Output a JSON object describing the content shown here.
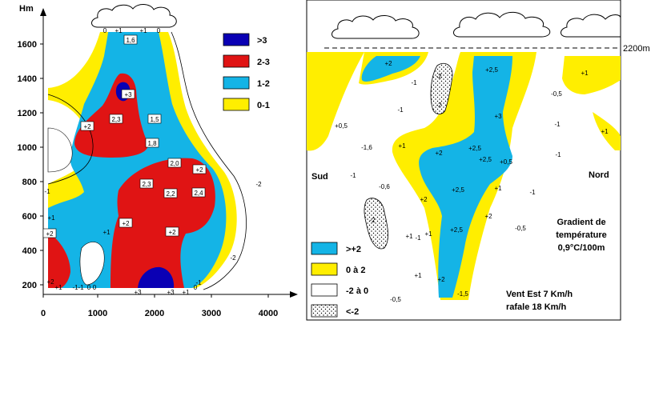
{
  "colors": {
    "cat_gt3": "#0a00b4",
    "cat_2_3": "#e01414",
    "cat_1_2": "#14b4e6",
    "cat_0_1": "#ffee00",
    "frame": "#000000"
  },
  "left_panel": {
    "y_axis_unit": "Hm",
    "y_ticks": [
      "1600",
      "1400",
      "1200",
      "1000",
      "800",
      "600",
      "400",
      "200"
    ],
    "x_ticks": [
      "0",
      "1000",
      "2000",
      "3000",
      "4000"
    ],
    "legend": [
      {
        "label": ">3",
        "color": "#0a00b4"
      },
      {
        "label": "2-3",
        "color": "#e01414"
      },
      {
        "label": "1-2",
        "color": "#14b4e6"
      },
      {
        "label": "0-1",
        "color": "#ffee00"
      }
    ],
    "boxed_values": [
      "1,6",
      "+3",
      "2,3",
      "+2",
      "1,5",
      "1,8",
      "2,0",
      "+2",
      "2,3",
      "2,2",
      "2,4",
      "+2",
      "+2",
      "+2"
    ],
    "contour_labels": [
      "0",
      "+1",
      "+1",
      "0",
      "-1",
      "+1",
      "+1",
      "-1",
      "-2",
      "-2",
      "+2",
      "+1",
      "0",
      "-1",
      "0",
      "+3",
      "+3",
      "+1",
      "0",
      "-1"
    ]
  },
  "right_panel": {
    "dashed_altitude_label": "2200m",
    "left_side_label": "Sud",
    "right_side_label": "Nord",
    "legend": [
      {
        "label": ">+2",
        "color": "#14b4e6"
      },
      {
        "label": "0 à 2",
        "color": "#ffee00"
      },
      {
        "label": "-2 à 0",
        "color": "#ffffff"
      },
      {
        "label": "<-2",
        "color": "dotted"
      }
    ],
    "gradient_lines": [
      "Gradient de",
      "température",
      "0,9°C/100m"
    ],
    "wind_lines": [
      "Vent Est 7 Km/h",
      "rafale 18 Km/h"
    ],
    "values": [
      "+2",
      "-1",
      "-2",
      "-2",
      "+2,5",
      "+1",
      "-0,5",
      "+0,5",
      "-1,6",
      "+1",
      "-1",
      "+3",
      "-1",
      "+1",
      "-1",
      "+2",
      "+2,5",
      "+2,5",
      "+0,5",
      "-1",
      "-0,6",
      "+2",
      "+2,5",
      "+1",
      "-1",
      "-2",
      "+2",
      "+1",
      "-0,5",
      "+1",
      "+2,5",
      "-1",
      "+1",
      "+2",
      "-1,5",
      "-0,5"
    ]
  }
}
